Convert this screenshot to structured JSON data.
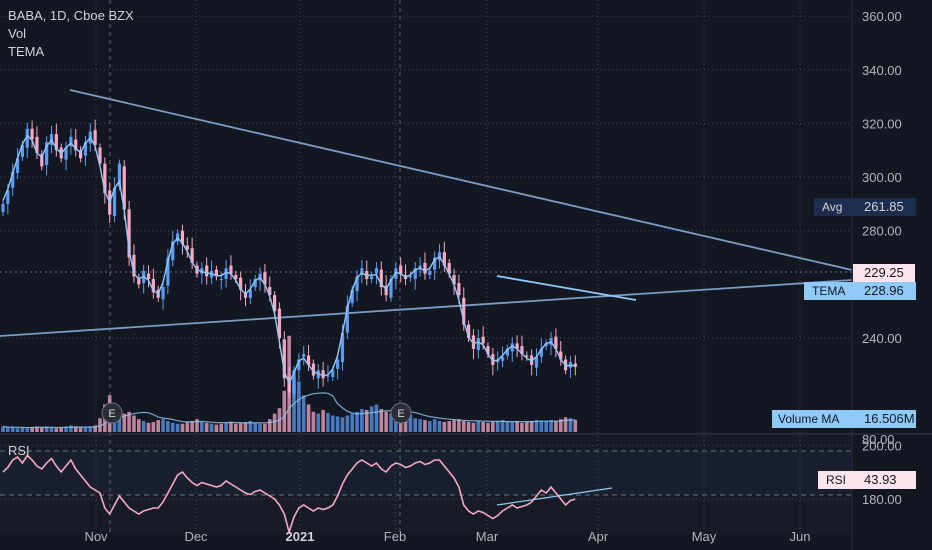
{
  "legend": {
    "symbol": "BABA, 1D, Cboe BZX",
    "volume_label": "Vol",
    "tema_label": "TEMA"
  },
  "badges": {
    "avg": {
      "label": "Avg",
      "value": "261.85"
    },
    "last_price": "229.25",
    "tema": {
      "label": "TEMA",
      "value": "228.96"
    },
    "volume_ma": {
      "label": "Volume MA",
      "value": "16.506M"
    },
    "rsi": {
      "label": "RSI",
      "value": "43.93"
    }
  },
  "rsi_pane": {
    "title": "RSI",
    "axis_tick": "80.00"
  },
  "earnings_marker": "E",
  "colors": {
    "background": "#131722",
    "up": "#5b9cf6",
    "down": "#f7a9c4",
    "tema": "#90caf9",
    "rsi": "#f7a9c4",
    "trendline": "#7b9cc4",
    "axis_text": "#b2b5be"
  },
  "chart_data": {
    "type": "candlestick",
    "x_ticks": [
      "Nov",
      "Dec",
      "2021",
      "Feb",
      "Mar",
      "Apr",
      "May",
      "Jun"
    ],
    "y_ticks": [
      360,
      340,
      320,
      300,
      280,
      240,
      200,
      180
    ],
    "y_tick_labels": [
      "360.00",
      "340.00",
      "320.00",
      "300.00",
      "280.00",
      "240.00",
      "200.00",
      "180.00"
    ],
    "ylim": [
      161,
      366
    ],
    "grid": true,
    "closes": [
      290,
      295,
      302,
      307,
      312,
      318,
      314,
      309,
      304,
      313,
      316,
      310,
      307,
      311,
      315,
      310,
      307,
      313,
      317,
      312,
      305,
      294,
      286,
      296,
      305,
      288,
      270,
      263,
      260,
      265,
      262,
      257,
      255,
      259,
      270,
      276,
      279,
      275,
      273,
      268,
      264,
      266,
      263,
      265,
      263,
      262,
      266,
      264,
      262,
      258,
      255,
      258,
      262,
      264,
      260,
      256,
      250,
      240,
      225,
      220,
      228,
      232,
      234,
      230,
      226,
      228,
      225,
      226,
      228,
      232,
      242,
      252,
      258,
      263,
      266,
      262,
      263,
      266,
      259,
      256,
      262,
      266,
      264,
      262,
      263,
      266,
      267,
      264,
      265,
      270,
      272,
      267,
      264,
      260,
      256,
      245,
      240,
      236,
      240,
      238,
      234,
      230,
      232,
      233,
      236,
      238,
      236,
      234,
      233,
      230,
      233,
      236,
      238,
      240,
      236,
      232,
      228,
      231,
      229.25
    ],
    "volume": [
      6,
      5,
      5,
      4,
      5,
      4,
      5,
      6,
      5,
      6,
      5,
      4,
      5,
      6,
      7,
      6,
      5,
      5,
      6,
      7,
      15,
      30,
      40,
      25,
      18,
      20,
      22,
      18,
      14,
      12,
      10,
      11,
      13,
      14,
      12,
      10,
      9,
      9,
      11,
      12,
      14,
      11,
      10,
      9,
      8,
      9,
      10,
      11,
      9,
      10,
      11,
      12,
      10,
      9,
      9,
      14,
      20,
      26,
      45,
      105,
      60,
      55,
      40,
      30,
      22,
      20,
      24,
      21,
      18,
      17,
      16,
      18,
      20,
      22,
      25,
      24,
      28,
      30,
      25,
      22,
      20,
      18,
      17,
      18,
      19,
      15,
      14,
      13,
      12,
      14,
      12,
      11,
      12,
      13,
      14,
      12,
      11,
      10,
      12,
      11,
      10,
      11,
      12,
      13,
      12,
      11,
      12,
      10,
      11,
      12,
      13,
      12,
      12,
      13,
      12,
      14,
      16,
      15,
      13
    ],
    "volume_ylim": [
      0,
      120
    ],
    "volume_ma": 16.506,
    "avg": 261.85,
    "tema_last": 228.96,
    "rsi": [
      62,
      65,
      70,
      72,
      68,
      73,
      70,
      66,
      64,
      68,
      71,
      66,
      62,
      66,
      70,
      64,
      60,
      56,
      52,
      50,
      48,
      38,
      34,
      40,
      46,
      42,
      38,
      36,
      34,
      36,
      37,
      38,
      38,
      42,
      48,
      54,
      60,
      62,
      58,
      55,
      53,
      55,
      54,
      53,
      52,
      53,
      56,
      54,
      52,
      50,
      48,
      47,
      49,
      50,
      48,
      46,
      44,
      40,
      34,
      22,
      32,
      38,
      40,
      38,
      36,
      38,
      37,
      38,
      40,
      46,
      54,
      60,
      64,
      68,
      70,
      68,
      66,
      68,
      64,
      62,
      66,
      68,
      67,
      65,
      66,
      68,
      69,
      67,
      68,
      70,
      70,
      66,
      62,
      58,
      52,
      40,
      36,
      34,
      36,
      35,
      33,
      31,
      33,
      36,
      38,
      40,
      38,
      39,
      40,
      42,
      46,
      50,
      48,
      52,
      48,
      44,
      40,
      43,
      43.93
    ],
    "rsi_ylim": [
      22,
      86
    ],
    "rsi_levels": [
      70,
      30
    ]
  }
}
